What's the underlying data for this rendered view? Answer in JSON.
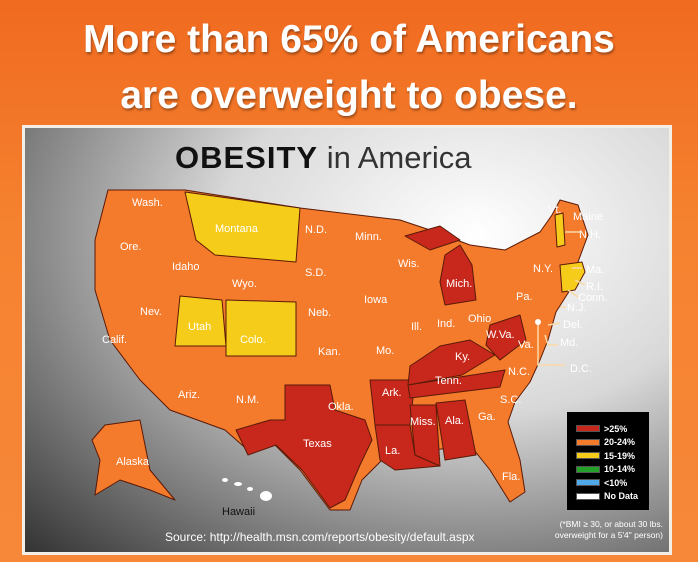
{
  "headline": {
    "line1": "More than 65% of Americans",
    "line2": "are overweight to obese."
  },
  "map_title": {
    "bold": "OBESITY",
    "rest": "in America"
  },
  "colors": {
    "gt25": "#c8281c",
    "20_24": "#f47a2c",
    "15_19": "#f5cc1a",
    "10_14": "#22a02a",
    "lt10": "#4fa8e8",
    "no_data": "#ffffff"
  },
  "state_labels": [
    "Wash.",
    "Ore.",
    "Calif.",
    "Nev.",
    "Idaho",
    "Montana",
    "Wyo.",
    "Utah",
    "Colo.",
    "Ariz.",
    "N.M.",
    "N.D.",
    "S.D.",
    "Neb.",
    "Kan.",
    "Okla.",
    "Texas",
    "Minn.",
    "Iowa",
    "Mo.",
    "Ark.",
    "La.",
    "Wis.",
    "Ill.",
    "Mich.",
    "Ind.",
    "Ohio",
    "Ky.",
    "Tenn.",
    "Miss.",
    "Ala.",
    "Ga.",
    "Fla.",
    "S.C.",
    "N.C.",
    "Va.",
    "W.Va.",
    "Pa.",
    "N.Y.",
    "Vt.",
    "Maine",
    "N.H.",
    "Ma.",
    "R.I.",
    "Conn.",
    "N.J.",
    "Del.",
    "Md.",
    "D.C.",
    "Alaska",
    "Hawaii"
  ],
  "legend": [
    {
      "label": ">25%",
      "color": "#c8281c"
    },
    {
      "label": "20-24%",
      "color": "#f47a2c"
    },
    {
      "label": "15-19%",
      "color": "#f5cc1a"
    },
    {
      "label": "10-14%",
      "color": "#22a02a"
    },
    {
      "label": "<10%",
      "color": "#4fa8e8"
    },
    {
      "label": "No Data",
      "color": "#ffffff"
    }
  ],
  "footnote": {
    "line1": "(*BMI ≥ 30, or about 30 lbs.",
    "line2": "overweight for a 5'4\" person)"
  },
  "source": "Source: http://health.msn.com/reports/obesity/default.aspx"
}
